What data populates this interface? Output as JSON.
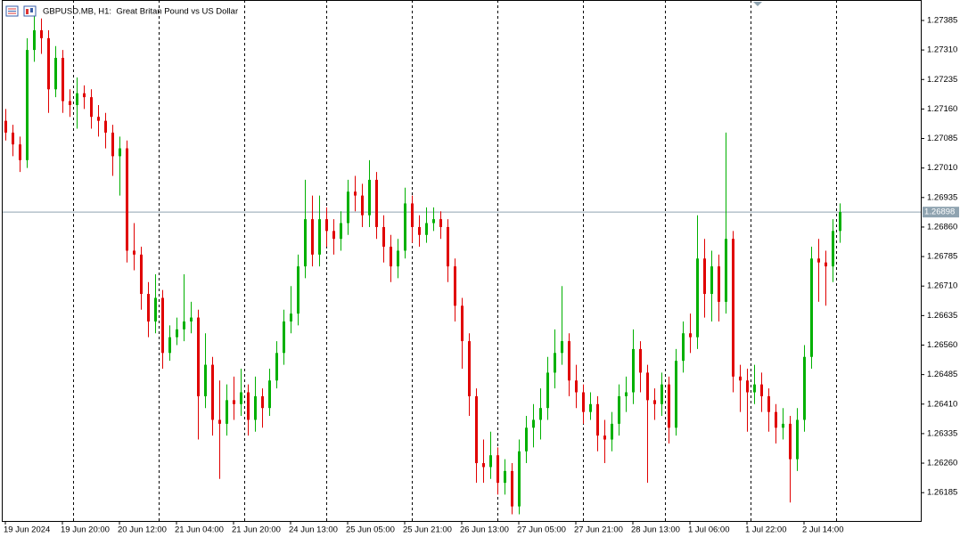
{
  "chart_data": {
    "type": "candlestick",
    "title": "GBPUSD.MB, H1:  Great Britan Pound vs US Dollar",
    "up_color": "#00b000",
    "down_color": "#e00000",
    "price_line_color": "#8fa3b0",
    "ylim": [
      1.26113,
      1.27437
    ],
    "yticks": [
      1.27385,
      {
        "value": 1.2731,
        "label": "1.27310"
      },
      1.27235,
      {
        "value": 1.2716,
        "label": "1.27160"
      },
      1.27085,
      {
        "value": 1.2701,
        "label": "1.27010"
      },
      1.26935,
      {
        "value": 1.2686,
        "label": "1.26860"
      },
      1.26785,
      {
        "value": 1.2671,
        "label": "1.26710"
      },
      1.26635,
      {
        "value": 1.2656,
        "label": "1.26560"
      },
      1.26485,
      {
        "value": 1.2641,
        "label": "1.26410"
      },
      1.26335,
      {
        "value": 1.2626,
        "label": "1.26260"
      },
      1.26185
    ],
    "xticks": [
      {
        "value": 0,
        "label": "19 Jun 2024"
      },
      {
        "value": 8,
        "label": "19 Jun 20:00"
      },
      {
        "value": 16,
        "label": "20 Jun 12:00"
      },
      {
        "value": 24,
        "label": "21 Jun 04:00"
      },
      {
        "value": 32,
        "label": "21 Jun 20:00"
      },
      {
        "value": 40,
        "label": "24 Jun 13:00"
      },
      {
        "value": 48,
        "label": "25 Jun 05:00"
      },
      {
        "value": 56,
        "label": "25 Jun 21:00"
      },
      {
        "value": 64,
        "label": "26 Jun 13:00"
      },
      {
        "value": 72,
        "label": "27 Jun 05:00"
      },
      {
        "value": 80,
        "label": "27 Jun 21:00"
      },
      {
        "value": 88,
        "label": "28 Jun 13:00"
      },
      {
        "value": 96,
        "label": "1 Jul 06:00"
      },
      {
        "value": 104,
        "label": "1 Jul 22:00"
      },
      {
        "value": 112,
        "label": "2 Jul 14:00"
      }
    ],
    "current_price": 1.26898,
    "open": [
      1.2713,
      1.271,
      1.2707,
      1.2703,
      1.2731,
      1.2736,
      1.2734,
      1.2721,
      1.2729,
      1.2718,
      1.2717,
      1.272,
      1.2719,
      1.2714,
      1.2713,
      1.271,
      1.2704,
      1.2706,
      1.268,
      1.2679,
      1.2669,
      1.2662,
      1.2668,
      1.2654,
      1.2658,
      1.266,
      1.2662,
      1.2663,
      1.2643,
      1.2651,
      1.2637,
      1.2636,
      1.2642,
      1.2641,
      1.2644,
      1.2637,
      1.2643,
      1.264,
      1.2647,
      1.2654,
      1.2662,
      1.2664,
      1.2676,
      1.2688,
      1.2679,
      1.2688,
      1.2685,
      1.2683,
      1.2687,
      1.2695,
      1.2694,
      1.2689,
      1.2698,
      1.2686,
      1.2681,
      1.2676,
      1.268,
      1.2692,
      1.2686,
      1.2684,
      1.2687,
      1.2688,
      1.2686,
      1.2676,
      1.2666,
      1.2657,
      1.2643,
      1.2626,
      1.2625,
      1.2628,
      1.2621,
      1.2624,
      1.2615,
      1.2629,
      1.2635,
      1.2637,
      1.264,
      1.2649,
      1.2654,
      1.2657,
      1.2647,
      1.2644,
      1.2639,
      1.2641,
      1.2633,
      1.2632,
      1.2636,
      1.2643,
      1.2644,
      1.2655,
      1.2649,
      1.2642,
      1.2641,
      1.2646,
      1.2635,
      1.2652,
      1.2659,
      1.2658,
      1.2678,
      1.2669,
      1.2676,
      1.2667,
      1.2683,
      1.2648,
      1.2647,
      1.2644,
      1.2646,
      1.2643,
      1.2639,
      1.2635,
      1.2636,
      1.2627,
      1.2637,
      1.2653,
      1.2678,
      1.2677,
      1.2676,
      1.2685
    ],
    "high": [
      1.2716,
      1.2712,
      1.2709,
      1.2734,
      1.2741,
      1.2739,
      1.2736,
      1.2732,
      1.2731,
      1.2721,
      1.2724,
      1.2722,
      1.2721,
      1.2717,
      1.2715,
      1.2712,
      1.2709,
      1.2708,
      1.2687,
      1.2681,
      1.2672,
      1.2674,
      1.267,
      1.2661,
      1.2663,
      1.2674,
      1.2667,
      1.2665,
      1.2659,
      1.2653,
      1.2647,
      1.2646,
      1.2648,
      1.265,
      1.2646,
      1.2648,
      1.2645,
      1.265,
      1.2657,
      1.2665,
      1.2671,
      1.2679,
      1.2698,
      1.2694,
      1.2694,
      1.2691,
      1.2688,
      1.269,
      1.2698,
      1.2699,
      1.2697,
      1.2703,
      1.27,
      1.2689,
      1.2684,
      1.2683,
      1.2696,
      1.2694,
      1.2689,
      1.2691,
      1.2691,
      1.269,
      1.2688,
      1.2678,
      1.2668,
      1.2659,
      1.2645,
      1.2632,
      1.2634,
      1.263,
      1.2627,
      1.2626,
      1.2632,
      1.2638,
      1.2641,
      1.2645,
      1.2653,
      1.266,
      1.2671,
      1.2659,
      1.2651,
      1.2646,
      1.2644,
      1.2643,
      1.2637,
      1.2639,
      1.2646,
      1.2648,
      1.266,
      1.2657,
      1.2651,
      1.2645,
      1.2649,
      1.2648,
      1.2655,
      1.2662,
      1.2664,
      1.2689,
      1.2683,
      1.268,
      1.2679,
      1.271,
      1.2685,
      1.2651,
      1.265,
      1.2651,
      1.2649,
      1.2645,
      1.2641,
      1.264,
      1.2638,
      1.264,
      1.2656,
      1.2681,
      1.2683,
      1.268,
      1.2688,
      1.2692
    ],
    "low": [
      1.2708,
      1.2704,
      1.27,
      1.2701,
      1.2728,
      1.273,
      1.2715,
      1.2719,
      1.2715,
      1.2714,
      1.2711,
      1.2716,
      1.2711,
      1.2709,
      1.2706,
      1.2699,
      1.2694,
      1.2677,
      1.2675,
      1.2665,
      1.2658,
      1.2659,
      1.265,
      1.2652,
      1.2656,
      1.2657,
      1.2659,
      1.2632,
      1.264,
      1.2633,
      1.2622,
      1.2633,
      1.2637,
      1.2638,
      1.2633,
      1.2634,
      1.2635,
      1.2638,
      1.2645,
      1.2651,
      1.2659,
      1.2661,
      1.2673,
      1.2676,
      1.2676,
      1.2681,
      1.2679,
      1.268,
      1.2684,
      1.269,
      1.2686,
      1.2686,
      1.2683,
      1.2677,
      1.2672,
      1.2673,
      1.2678,
      1.2682,
      1.2681,
      1.2682,
      1.2685,
      1.2683,
      1.2672,
      1.2662,
      1.265,
      1.2638,
      1.2621,
      1.2621,
      1.2622,
      1.2618,
      1.2618,
      1.2613,
      1.2613,
      1.2626,
      1.263,
      1.2632,
      1.2637,
      1.2645,
      1.2651,
      1.2643,
      1.264,
      1.2636,
      1.2637,
      1.2629,
      1.2626,
      1.2629,
      1.2633,
      1.2639,
      1.2641,
      1.2644,
      1.2621,
      1.2637,
      1.2638,
      1.2631,
      1.2633,
      1.2649,
      1.2654,
      1.2655,
      1.2663,
      1.2662,
      1.2662,
      1.2664,
      1.2644,
      1.2639,
      1.2634,
      1.2641,
      1.2639,
      1.2634,
      1.2631,
      1.2632,
      1.2616,
      1.2624,
      1.2634,
      1.265,
      1.2667,
      1.2666,
      1.2672,
      1.2682
    ],
    "close": [
      1.271,
      1.2707,
      1.2703,
      1.2731,
      1.2736,
      1.2734,
      1.2721,
      1.2729,
      1.2718,
      1.2717,
      1.272,
      1.2719,
      1.2714,
      1.2713,
      1.271,
      1.2704,
      1.2706,
      1.268,
      1.2679,
      1.2669,
      1.2662,
      1.2668,
      1.2654,
      1.2658,
      1.266,
      1.2662,
      1.2663,
      1.2643,
      1.2651,
      1.2637,
      1.2636,
      1.2642,
      1.2641,
      1.2644,
      1.2637,
      1.2643,
      1.264,
      1.2647,
      1.2654,
      1.2662,
      1.2664,
      1.2676,
      1.2688,
      1.2679,
      1.2688,
      1.2685,
      1.2683,
      1.2687,
      1.2695,
      1.2694,
      1.2689,
      1.2698,
      1.2686,
      1.2681,
      1.2676,
      1.268,
      1.2692,
      1.2686,
      1.2684,
      1.2687,
      1.2688,
      1.2686,
      1.2676,
      1.2666,
      1.2657,
      1.2643,
      1.2626,
      1.2625,
      1.2628,
      1.2621,
      1.2624,
      1.2615,
      1.2629,
      1.2635,
      1.2637,
      1.264,
      1.2649,
      1.2654,
      1.2657,
      1.2647,
      1.2644,
      1.2639,
      1.2641,
      1.2633,
      1.2632,
      1.2636,
      1.2643,
      1.2644,
      1.2655,
      1.2649,
      1.2642,
      1.2641,
      1.2646,
      1.2635,
      1.2652,
      1.2659,
      1.2658,
      1.2678,
      1.2669,
      1.2676,
      1.2667,
      1.2683,
      1.2648,
      1.2647,
      1.2644,
      1.2646,
      1.2643,
      1.2639,
      1.2635,
      1.2636,
      1.2627,
      1.2637,
      1.2653,
      1.2678,
      1.2677,
      1.2676,
      1.2685,
      1.26898
    ]
  }
}
